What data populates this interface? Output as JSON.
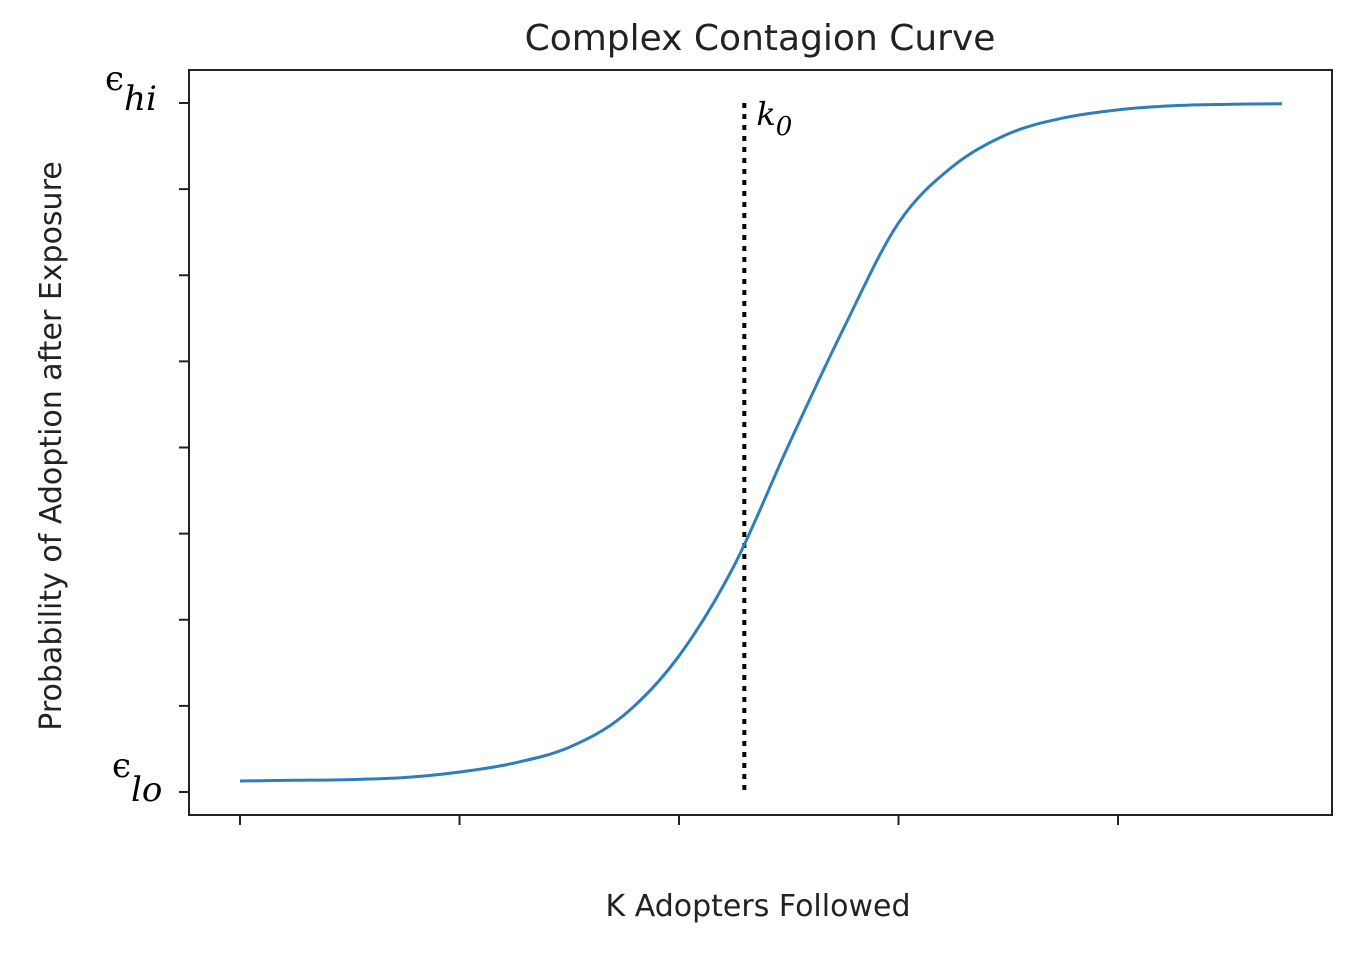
{
  "chart_data": {
    "type": "line",
    "title": "Complex Contagion Curve",
    "xlabel": "K Adopters Followed",
    "ylabel": "Probability of Adoption after Exposure",
    "x_ticks_count": 5,
    "y_ticks_count": 9,
    "xlim": [
      0,
      1
    ],
    "ylim": [
      0,
      1
    ],
    "grid": false,
    "y_top_label": {
      "symbol": "ϵ",
      "sub": "hi"
    },
    "y_bottom_label": {
      "symbol": "ϵ",
      "sub": "lo"
    },
    "threshold": {
      "x": 0.484,
      "label": "k",
      "sub": "0",
      "style": "dotted"
    },
    "series": [
      {
        "color": "#2f7ebc",
        "x": [
          0.0,
          0.053,
          0.105,
          0.158,
          0.211,
          0.263,
          0.316,
          0.368,
          0.421,
          0.474,
          0.526,
          0.579,
          0.632,
          0.684,
          0.737,
          0.789,
          0.842,
          0.895,
          0.947,
          1.0
        ],
        "y": [
          0.016,
          0.017,
          0.018,
          0.021,
          0.029,
          0.042,
          0.065,
          0.111,
          0.197,
          0.328,
          0.502,
          0.672,
          0.826,
          0.908,
          0.955,
          0.978,
          0.99,
          0.996,
          0.998,
          0.999
        ]
      }
    ]
  }
}
